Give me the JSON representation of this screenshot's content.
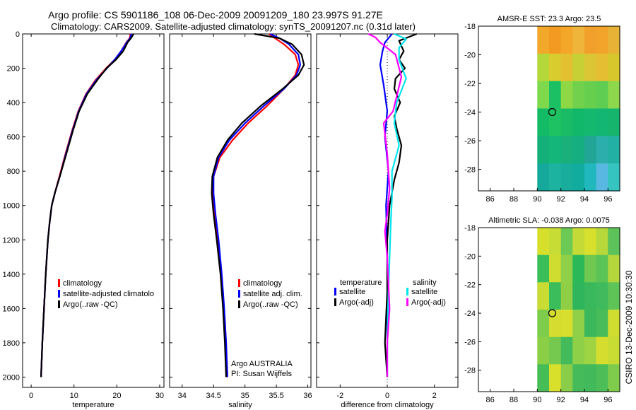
{
  "title_line1": "Argo profile: CS 5901186_108 06-Dec-2009 20091209_180 23.997S 91.27E",
  "title_line2": "Climatology: CARS2009. Satellite-adjusted climatology: synTS_20091207.nc (0.31d later)",
  "side_text": "CSIRO 13-Dec-2009 10:30:30",
  "colors": {
    "climatology": "#ff0000",
    "satellite": "#0000ff",
    "argo": "#000000",
    "sal_sat": "#00e5ee",
    "sal_argo": "#ff00ff"
  },
  "chart_data": [
    {
      "type": "line",
      "name": "temperature",
      "xlabel": "temperature",
      "xlim": [
        -2,
        31
      ],
      "ylim": [
        2060,
        0
      ],
      "xticks": [
        "0",
        "10",
        "20",
        "30"
      ],
      "xtick_values": [
        0,
        10,
        20,
        30
      ],
      "yticks": [
        "0",
        "200",
        "400",
        "600",
        "800",
        "1000",
        "1200",
        "1400",
        "1600",
        "1800",
        "2000"
      ],
      "ytick_values": [
        0,
        200,
        400,
        600,
        800,
        1000,
        1200,
        1400,
        1600,
        1800,
        2000
      ],
      "legend": [
        "climatology",
        "satellite-adjusted climatolo",
        "Argo(..raw -QC)"
      ],
      "series": [
        {
          "name": "climatology",
          "color": "#ff0000",
          "x": [
            23.2,
            23.0,
            22.2,
            21.0,
            19.5,
            17.5,
            15.0,
            12.8,
            11.0,
            9.6,
            8.0,
            6.6,
            5.6,
            4.8,
            4.3,
            3.9,
            3.4,
            3.0,
            2.6,
            2.3
          ],
          "y": [
            0,
            25,
            50,
            100,
            150,
            200,
            270,
            350,
            450,
            560,
            700,
            830,
            920,
            1000,
            1100,
            1200,
            1400,
            1600,
            1800,
            2000
          ]
        },
        {
          "name": "satellite",
          "color": "#0000ff",
          "x": [
            23.4,
            23.1,
            22.3,
            21.0,
            19.5,
            17.7,
            15.2,
            12.9,
            11.1,
            9.7,
            8.1,
            6.7,
            5.6,
            4.8,
            4.3,
            3.9,
            3.4,
            3.0,
            2.6,
            2.3
          ],
          "y": [
            0,
            25,
            50,
            100,
            150,
            200,
            270,
            350,
            450,
            560,
            700,
            830,
            920,
            1000,
            1100,
            1200,
            1400,
            1600,
            1800,
            2000
          ]
        },
        {
          "name": "argo",
          "color": "#000000",
          "x": [
            23.9,
            23.3,
            22.5,
            21.5,
            19.8,
            17.6,
            15.4,
            13.1,
            11.2,
            9.8,
            8.2,
            6.7,
            5.6,
            4.8,
            4.3,
            3.9,
            3.4,
            3.0,
            2.6,
            2.3
          ],
          "y": [
            0,
            25,
            50,
            100,
            150,
            200,
            270,
            350,
            450,
            560,
            700,
            830,
            920,
            1000,
            1100,
            1200,
            1400,
            1600,
            1800,
            2000
          ]
        }
      ]
    },
    {
      "type": "line",
      "name": "salinity",
      "xlabel": "salinity",
      "xlim": [
        33.8,
        36.05
      ],
      "ylim": [
        2060,
        0
      ],
      "xticks": [
        "34",
        "34.5",
        "35",
        "35.5",
        "36"
      ],
      "xtick_values": [
        34,
        34.5,
        35,
        35.5,
        36
      ],
      "legend": [
        "climatology",
        "satellite adj. clim.",
        "Argo(..raw -QC)"
      ],
      "annotations": [
        "Argo AUSTRALIA",
        "PI: Susan Wijffels"
      ],
      "series": [
        {
          "name": "climatology",
          "color": "#ff0000",
          "x": [
            35.38,
            35.48,
            35.62,
            35.8,
            35.85,
            35.8,
            35.62,
            35.35,
            35.05,
            34.8,
            34.6,
            34.5,
            34.49,
            34.52,
            34.57,
            34.62,
            34.66,
            34.7,
            34.72
          ],
          "y": [
            0,
            25,
            60,
            120,
            180,
            240,
            320,
            420,
            520,
            620,
            720,
            830,
            930,
            1050,
            1200,
            1400,
            1600,
            1800,
            2000
          ]
        },
        {
          "name": "satellite",
          "color": "#0000ff",
          "x": [
            35.4,
            35.55,
            35.7,
            35.85,
            35.88,
            35.82,
            35.62,
            35.3,
            35.0,
            34.75,
            34.58,
            34.5,
            34.5,
            34.53,
            34.58,
            34.63,
            34.67,
            34.7,
            34.72
          ],
          "y": [
            0,
            25,
            60,
            120,
            180,
            240,
            320,
            420,
            520,
            620,
            720,
            830,
            930,
            1050,
            1200,
            1400,
            1600,
            1800,
            2000
          ]
        },
        {
          "name": "argo",
          "color": "#000000",
          "x": [
            35.15,
            35.55,
            35.75,
            35.9,
            35.94,
            35.85,
            35.6,
            35.25,
            34.95,
            34.72,
            34.56,
            34.48,
            34.47,
            34.5,
            34.55,
            34.61,
            34.65,
            34.68,
            34.7
          ],
          "y": [
            0,
            25,
            60,
            120,
            180,
            240,
            320,
            420,
            520,
            620,
            720,
            830,
            930,
            1050,
            1200,
            1400,
            1600,
            1800,
            2000
          ]
        }
      ]
    },
    {
      "type": "line",
      "name": "difference",
      "xlabel": "difference from climatology",
      "xlim": [
        -3,
        3
      ],
      "ylim": [
        2060,
        0
      ],
      "xticks": [
        "-2",
        "0",
        "2"
      ],
      "xtick_values": [
        -2,
        0,
        2
      ],
      "legend_titles": [
        "temperature",
        "salinity"
      ],
      "legend": [
        "satellite",
        "Argo(-adj)",
        "satellite",
        "Argo(-adj)"
      ],
      "series": [
        {
          "name": "temperature satellite",
          "color": "#0000ff",
          "x": [
            0.2,
            -0.1,
            -0.2,
            -0.3,
            -0.15,
            0.0,
            -0.1,
            0.05,
            -0.05,
            0.0,
            0.0,
            0.0
          ],
          "y": [
            0,
            50,
            100,
            180,
            300,
            450,
            600,
            800,
            1000,
            1300,
            1600,
            2000
          ]
        },
        {
          "name": "temperature argo",
          "color": "#000000",
          "x": [
            1.25,
            0.5,
            0.7,
            0.5,
            0.75,
            0.35,
            0.3,
            0.55,
            0.3,
            0.4,
            0.6,
            0.5,
            0.3,
            0.1,
            0.0,
            0.0,
            -0.1,
            0.0
          ],
          "y": [
            0,
            40,
            100,
            150,
            200,
            260,
            320,
            400,
            480,
            550,
            650,
            750,
            850,
            1000,
            1200,
            1500,
            1800,
            2000
          ]
        },
        {
          "name": "salinity satellite",
          "color": "#00e5ee",
          "x": [
            0.3,
            0.8,
            0.5,
            0.5,
            0.8,
            0.4,
            0.3,
            0.5,
            0.2,
            0.2,
            0.15,
            0.1,
            0.05,
            0.0,
            0.0
          ],
          "y": [
            0,
            30,
            80,
            150,
            260,
            400,
            520,
            650,
            800,
            950,
            1100,
            1300,
            1500,
            1800,
            2000
          ]
        },
        {
          "name": "salinity argo",
          "color": "#ff00ff",
          "x": [
            -0.8,
            -0.5,
            -0.3,
            0.35,
            0.6,
            0.25,
            -0.15,
            0.0,
            0.1,
            0.0,
            -0.1,
            0.0,
            0.1,
            0.0,
            0.0
          ],
          "y": [
            0,
            20,
            50,
            120,
            250,
            450,
            520,
            700,
            900,
            1050,
            1150,
            1300,
            1600,
            1800,
            2000
          ]
        }
      ]
    },
    {
      "type": "heatmap",
      "name": "sst-map",
      "title": "AMSR-E SST: 23.3 Argo: 23.5",
      "xlim": [
        85,
        97
      ],
      "ylim": [
        -29.5,
        -18
      ],
      "xticks": [
        "86",
        "88",
        "90",
        "92",
        "94",
        "96"
      ],
      "xtick_values": [
        86,
        88,
        90,
        92,
        94,
        96
      ],
      "yticks": [
        "-18",
        "-20",
        "-22",
        "-24",
        "-26",
        "-28"
      ],
      "ytick_values": [
        -18,
        -20,
        -22,
        -24,
        -26,
        -28
      ],
      "marker": {
        "lon": 91.27,
        "lat": -23.997
      },
      "data_lon_start": 90,
      "cols": 7,
      "rows": 6,
      "grid": [
        [
          "#f2a92a",
          "#f29a22",
          "#f3a628",
          "#eeb53a",
          "#f2a02c",
          "#f2a32a",
          "#e7b236"
        ],
        [
          "#b4d83a",
          "#d8cc2e",
          "#e2c030",
          "#c7d034",
          "#dcc636",
          "#e6be32",
          "#d7c62c"
        ],
        [
          "#7ed94d",
          "#1cc064",
          "#8dd844",
          "#72d14c",
          "#66cf4e",
          "#5ece52",
          "#8cd74b"
        ],
        [
          "#14bb66",
          "#1fc262",
          "#19bb64",
          "#12b86a",
          "#14b86e",
          "#13b672",
          "#15b56e"
        ],
        [
          "#13b07a",
          "#14b67a",
          "#1ab07c",
          "#14ae80",
          "#22a496",
          "#2cafac",
          "#23b0a4"
        ],
        [
          "#14a99a",
          "#1cb4a0",
          "#18ad9c",
          "#12ac9e",
          "#20b8bc",
          "#58b8e2",
          "#35c4c0"
        ]
      ]
    },
    {
      "type": "heatmap",
      "name": "sla-map",
      "title": "Altimetric SLA: -0.038 Argo: 0.0075",
      "xlim": [
        85,
        97
      ],
      "ylim": [
        -29.5,
        -18
      ],
      "xticks": [
        "86",
        "88",
        "90",
        "92",
        "94",
        "96"
      ],
      "xtick_values": [
        86,
        88,
        90,
        92,
        94,
        96
      ],
      "yticks": [
        "-18",
        "-20",
        "-22",
        "-24",
        "-26",
        "-28"
      ],
      "ytick_values": [
        -18,
        -20,
        -22,
        -24,
        -26,
        -28
      ],
      "marker": {
        "lon": 91.27,
        "lat": -23.997
      },
      "data_lon_start": 90,
      "cols": 7,
      "rows": 6,
      "grid": [
        [
          "#d6e02c",
          "#c7dc34",
          "#6cc954",
          "#c4da36",
          "#d7e02c",
          "#b6d83a",
          "#5cc35a"
        ],
        [
          "#39be5a",
          "#cfdc30",
          "#8fd048",
          "#2bb858",
          "#6fc84f",
          "#5cc457",
          "#b3d63c"
        ],
        [
          "#c8dc33",
          "#3bbd5c",
          "#8ecf46",
          "#2fb55c",
          "#39b95c",
          "#3fba5c",
          "#5fc457"
        ],
        [
          "#7ecc4c",
          "#d6dc30",
          "#d8de2d",
          "#8fd048",
          "#3bb75c",
          "#47bc58",
          "#d0dc30"
        ],
        [
          "#8bcf47",
          "#74c94e",
          "#44bb5b",
          "#8ed048",
          "#9ed444",
          "#d5de2e",
          "#c7dc33"
        ],
        [
          "#47bd58",
          "#d8e02c",
          "#8acd49",
          "#46bb59",
          "#42b95b",
          "#4cbd57",
          "#7fcc4c"
        ]
      ]
    }
  ]
}
